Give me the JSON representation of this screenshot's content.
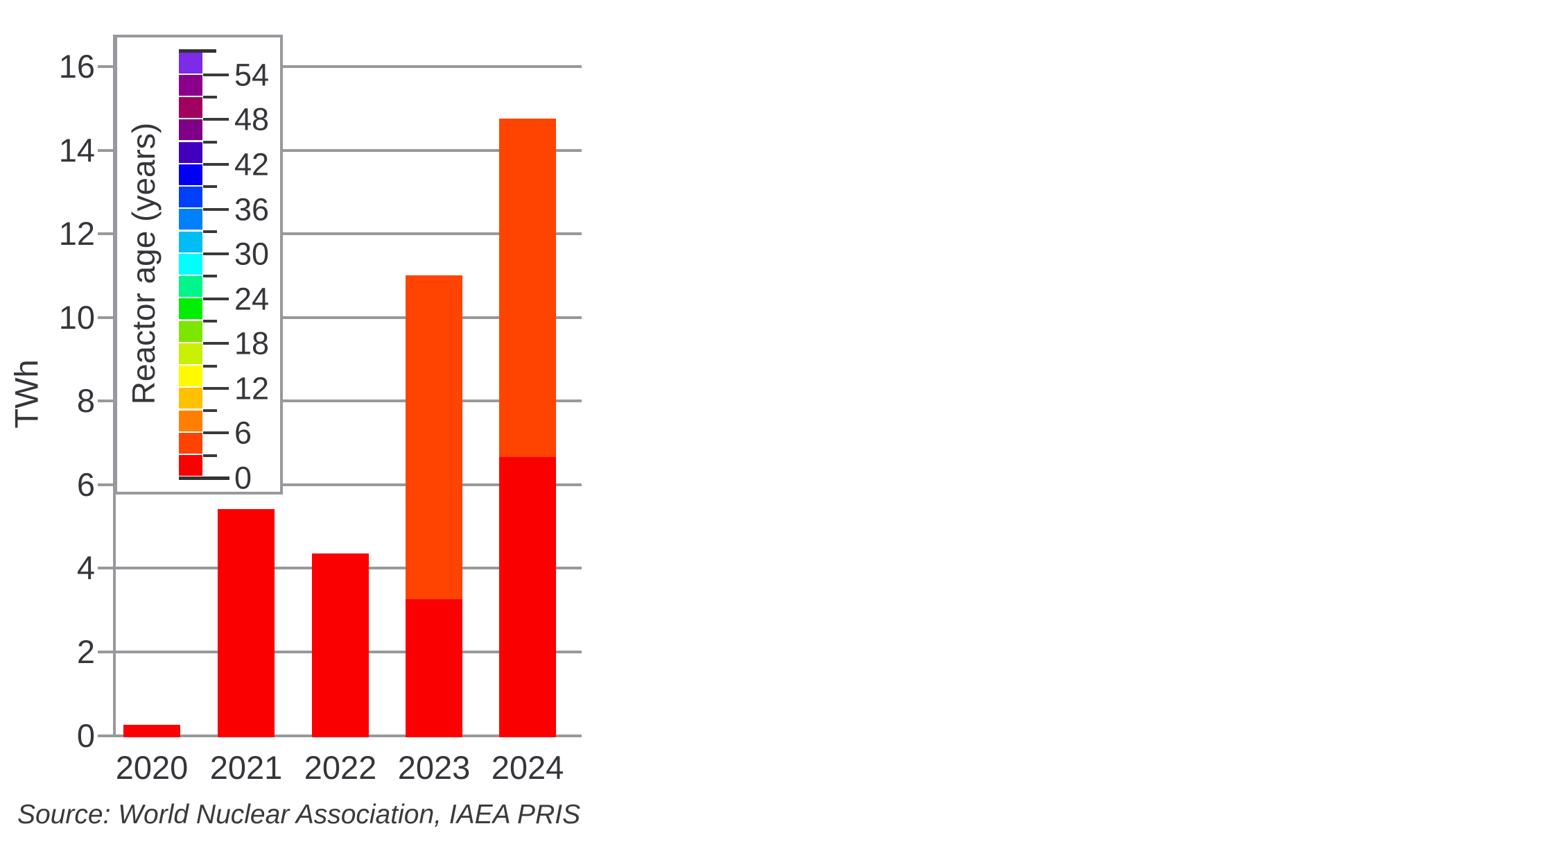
{
  "chart_data": {
    "type": "bar",
    "stacked": true,
    "categories": [
      "2020",
      "2021",
      "2022",
      "2023",
      "2024"
    ],
    "series": [
      {
        "name": "Reactor age 0-3 years",
        "color": "#fb0000",
        "values": [
          0.3,
          5.45,
          4.4,
          3.3,
          6.7
        ]
      },
      {
        "name": "Reactor age 3-6 years",
        "color": "#ff4300",
        "values": [
          0,
          0,
          0,
          7.75,
          8.1
        ]
      }
    ],
    "totals": [
      0.3,
      5.45,
      4.4,
      11.05,
      14.8
    ],
    "ylabel": "TWh",
    "ylim": [
      0,
      16
    ],
    "yticks": [
      0,
      2,
      4,
      6,
      8,
      10,
      12,
      14,
      16
    ],
    "grid": true,
    "legend_position": "upper-left-inside"
  },
  "legend": {
    "title": "Reactor age (years)",
    "scale_min": 0,
    "scale_max": 57,
    "step_years": 3,
    "label_every_years": 6,
    "tick_labels": [
      54,
      48,
      42,
      36,
      30,
      24,
      18,
      12,
      6,
      0
    ],
    "swatches": [
      {
        "range": "54-57",
        "color": "#7c2be8"
      },
      {
        "range": "51-54",
        "color": "#8b008b"
      },
      {
        "range": "48-51",
        "color": "#a20060"
      },
      {
        "range": "45-48",
        "color": "#7d0087"
      },
      {
        "range": "42-45",
        "color": "#4200be"
      },
      {
        "range": "39-42",
        "color": "#0000f5"
      },
      {
        "range": "36-39",
        "color": "#0040fa"
      },
      {
        "range": "33-36",
        "color": "#0080fa"
      },
      {
        "range": "30-33",
        "color": "#00bdf5"
      },
      {
        "range": "27-30",
        "color": "#00ffff"
      },
      {
        "range": "24-27",
        "color": "#00f58a"
      },
      {
        "range": "21-24",
        "color": "#00ee00"
      },
      {
        "range": "18-21",
        "color": "#7ce600"
      },
      {
        "range": "15-18",
        "color": "#c8f000"
      },
      {
        "range": "12-15",
        "color": "#fffa00"
      },
      {
        "range": "9-12",
        "color": "#ffc000"
      },
      {
        "range": "6-9",
        "color": "#ff8000"
      },
      {
        "range": "3-6",
        "color": "#ff4300"
      },
      {
        "range": "0-3",
        "color": "#fb0000"
      }
    ],
    "colors": {
      "grid": "#98989d",
      "tick": "#3a3a3a",
      "text": "#35353a"
    }
  },
  "source_note": "Source: World Nuclear Association, IAEA PRIS"
}
